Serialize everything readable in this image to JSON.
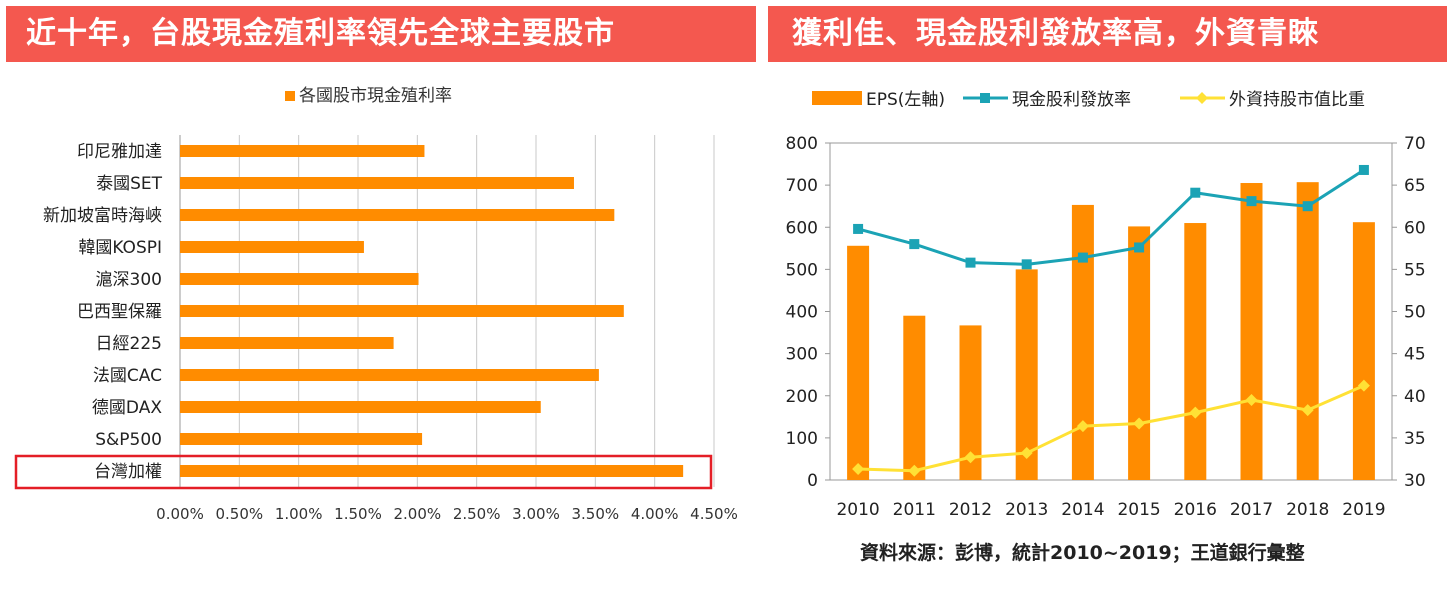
{
  "banners": {
    "left": "近十年，台股現金殖利率領先全球主要股市",
    "right": "獲利佳、現金股利發放率高，外資青睞"
  },
  "source": "資料來源：彭博，統計2010~2019；王道銀行彙整",
  "colors": {
    "banner": "#f4584f",
    "bar": "#ff8c00",
    "line_payout": "#1ba3b5",
    "line_foreign": "#ffe135",
    "highlight": "#e41e26"
  },
  "chart_data": [
    {
      "type": "bar",
      "orientation": "horizontal",
      "legend": "各國股市現金殖利率",
      "legend_position": "top",
      "categories": [
        "印尼雅加達",
        "泰國SET",
        "新加坡富時海峽",
        "韓國KOSPI",
        "滬深300",
        "巴西聖保羅",
        "日經225",
        "法國CAC",
        "德國DAX",
        "S&P500",
        "台灣加權"
      ],
      "values": [
        0.0206,
        0.0332,
        0.0366,
        0.0155,
        0.0201,
        0.0374,
        0.018,
        0.0353,
        0.0304,
        0.0204,
        0.0424
      ],
      "xlim": [
        0,
        0.045
      ],
      "xticks": [
        "0.00%",
        "0.50%",
        "1.00%",
        "1.50%",
        "2.00%",
        "2.50%",
        "3.00%",
        "3.50%",
        "4.00%",
        "4.50%"
      ],
      "highlighted_category": "台灣加權",
      "grid": true
    },
    {
      "type": "bar+line",
      "categories": [
        "2010",
        "2011",
        "2012",
        "2013",
        "2014",
        "2015",
        "2016",
        "2017",
        "2018",
        "2019"
      ],
      "legend_position": "top",
      "series": [
        {
          "name": "EPS(左軸)",
          "type": "bar",
          "axis": "left",
          "values": [
            556,
            390,
            367,
            500,
            653,
            602,
            610,
            705,
            707,
            612
          ]
        },
        {
          "name": "現金股利發放率",
          "type": "line",
          "axis": "right",
          "values": [
            59.8,
            58.0,
            55.8,
            55.6,
            56.4,
            57.6,
            64.1,
            63.1,
            62.5,
            66.8
          ]
        },
        {
          "name": "外資持股市值比重",
          "type": "line",
          "axis": "right",
          "values": [
            31.3,
            31.1,
            32.7,
            33.2,
            36.4,
            36.7,
            38.0,
            39.5,
            38.3,
            41.2
          ]
        }
      ],
      "ylim_left": [
        0,
        800
      ],
      "yticks_left": [
        "0",
        "100",
        "200",
        "300",
        "400",
        "500",
        "600",
        "700",
        "800"
      ],
      "ylim_right": [
        30,
        70
      ],
      "yticks_right": [
        "30",
        "35",
        "40",
        "45",
        "50",
        "55",
        "60",
        "65",
        "70"
      ],
      "grid": false
    }
  ]
}
